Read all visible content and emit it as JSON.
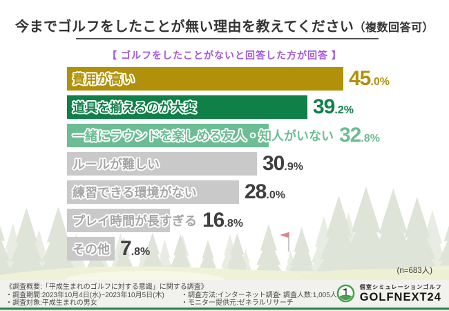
{
  "header": {
    "title_main": "今までゴルフをしたことが無い理由を教えてください",
    "title_paren": "（複数回答可）",
    "subtitle": "【 ゴルフをしたことがないと回答した方が回答 】"
  },
  "chart_data": {
    "type": "bar",
    "orientation": "horizontal",
    "title": "今までゴルフをしたことが無い理由を教えてください（複数回答可）",
    "subtitle": "【 ゴルフをしたことがないと回答した方が回答 】",
    "note": "(n=683人)",
    "unit": "%",
    "xlim": [
      0,
      50
    ],
    "categories": [
      "費用が高い",
      "道具を揃えるのが大変",
      "一緒にラウンドを楽しめる友人・知人がいない",
      "ルールが難しい",
      "練習できる環境がない",
      "プレイ時間が長すぎる",
      "その他"
    ],
    "values": [
      45.0,
      39.2,
      32.8,
      30.9,
      28.0,
      16.8,
      7.8
    ],
    "bar_colors": [
      "#b2910a",
      "#0f8048",
      "#6cbd94",
      "#c9c9c9",
      "#c9c9c9",
      "#c9c9c9",
      "#c9c9c9"
    ],
    "label_colors": [
      "#b2910a",
      "#0f8048",
      "#6cbd94",
      "#a6a6a6",
      "#a6a6a6",
      "#a6a6a6",
      "#a6a6a6"
    ],
    "value_colors": [
      "#b2910a",
      "#0f8048",
      "#6cbd94",
      "#3f3f3f",
      "#3f3f3f",
      "#3f3f3f",
      "#3f3f3f"
    ]
  },
  "footer": {
    "overview": "《調査概要:「平成生まれのゴルフに対する意識」に関する調査》",
    "period": "・調査期間:2023年10月4日(水)~2023年10月5日(木)",
    "target": "・調査対象:平成生まれの男女",
    "method": "・調査方法:インターネット調査",
    "monitor": "・モニター提供元:ゼネラルリサーチ",
    "respondents": "・調査人数:1,005人"
  },
  "logo": {
    "tagline": "個室シミュレーションゴルフ",
    "brand": "GOLFNEXT24"
  },
  "colors": {
    "accent_gold": "#b2910a",
    "accent_green_dark": "#0f8048",
    "accent_green_light": "#6cbd94",
    "bar_gray": "#c9c9c9",
    "subtitle_purple": "#a455dd",
    "footer_bg": "#f1f1ee",
    "bottom_border_green": "#2e7d4f",
    "forest_back": "#e9ece3",
    "forest_front": "#dfe4d8",
    "ground": "#f0f2d8",
    "flag_red": "#d98485"
  }
}
